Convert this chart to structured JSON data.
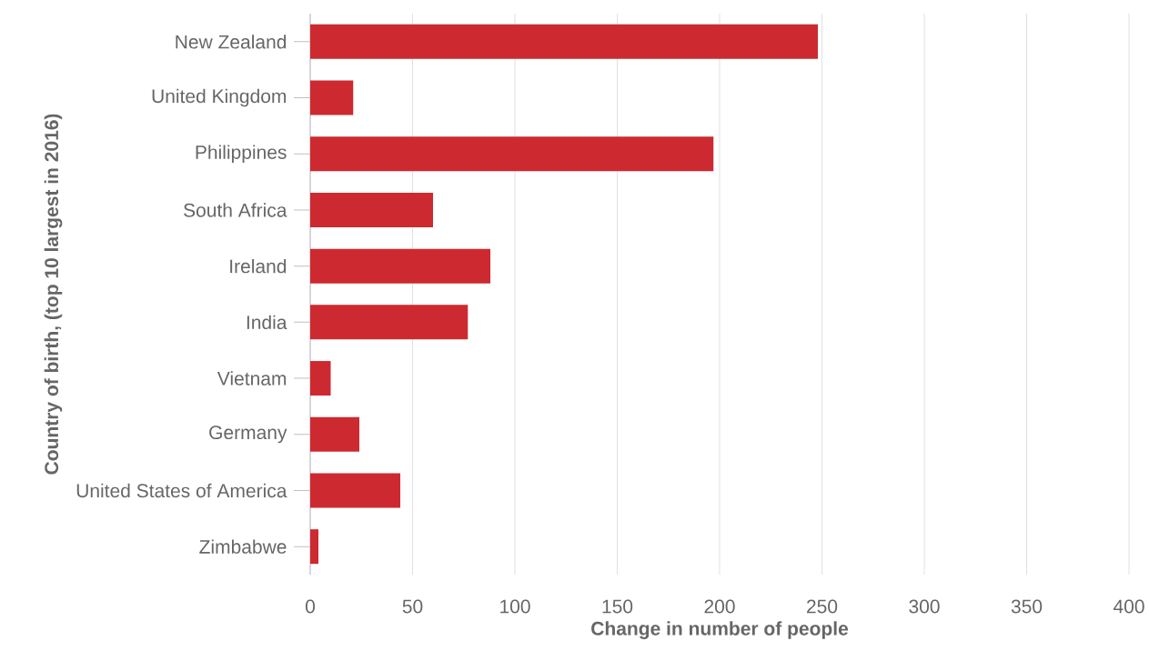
{
  "chart_data": {
    "type": "bar",
    "orientation": "horizontal",
    "xlabel": "Change in number of people",
    "ylabel": "Country of birth, (top 10 largest in 2016)",
    "categories": [
      "New Zealand",
      "United Kingdom",
      "Philippines",
      "South Africa",
      "Ireland",
      "India",
      "Vietnam",
      "Germany",
      "United States of America",
      "Zimbabwe"
    ],
    "values": [
      248,
      21,
      197,
      60,
      88,
      77,
      10,
      24,
      44,
      4
    ],
    "color": "#cc2a30",
    "xlim": [
      0,
      400
    ],
    "xticks": [
      0,
      50,
      100,
      150,
      200,
      250,
      300,
      350,
      400
    ],
    "grid": "x"
  }
}
